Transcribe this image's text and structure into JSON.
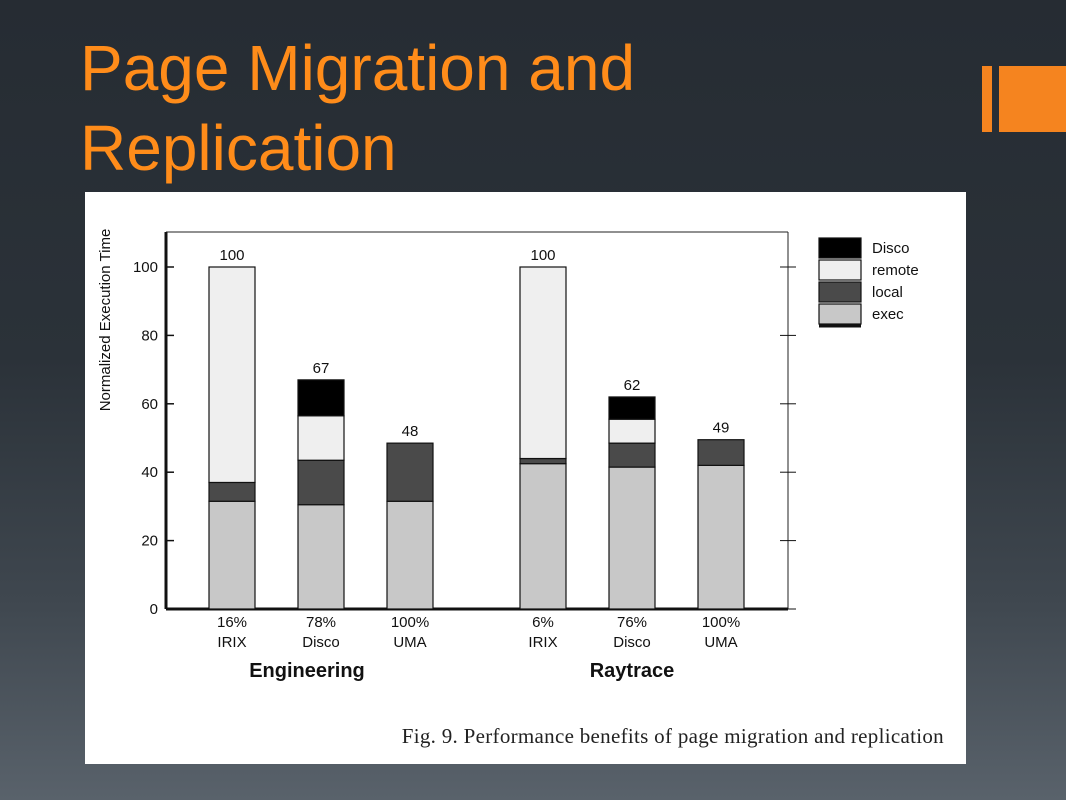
{
  "slide": {
    "title": "Page Migration and\nReplication"
  },
  "figure": {
    "caption": "Fig. 9.    Performance benefits of page migration and replication"
  },
  "colors": {
    "accent": "#ff8c1a",
    "disco": "#000000",
    "remote": "#efefef",
    "local": "#4a4a4a",
    "exec": "#c8c8c8"
  },
  "chart_data": {
    "type": "bar",
    "stacked": true,
    "ylabel": "Normalized Execution Time",
    "ylim": [
      0,
      110
    ],
    "yticks": [
      0,
      20,
      40,
      60,
      80,
      100
    ],
    "grid": false,
    "legend_position": "right",
    "legend": [
      "Disco",
      "remote",
      "local",
      "exec"
    ],
    "groups": [
      {
        "name": "Engineering",
        "bars": [
          {
            "percent": "16%",
            "label": "IRIX",
            "total": "100",
            "exec": 31.5,
            "local": 5.5,
            "remote": 63,
            "disco": 0
          },
          {
            "percent": "78%",
            "label": "Disco",
            "total": "67",
            "exec": 30.5,
            "local": 13,
            "remote": 13,
            "disco": 10.5
          },
          {
            "percent": "100%",
            "label": "UMA",
            "total": "48",
            "exec": 31.5,
            "local": 17,
            "remote": 0,
            "disco": 0
          }
        ]
      },
      {
        "name": "Raytrace",
        "bars": [
          {
            "percent": "6%",
            "label": "IRIX",
            "total": "100",
            "exec": 42.5,
            "local": 1.5,
            "remote": 56,
            "disco": 0
          },
          {
            "percent": "76%",
            "label": "Disco",
            "total": "62",
            "exec": 41.5,
            "local": 7,
            "remote": 7,
            "disco": 6.5
          },
          {
            "percent": "100%",
            "label": "UMA",
            "total": "49",
            "exec": 42,
            "local": 7.5,
            "remote": 0,
            "disco": 0
          }
        ]
      }
    ]
  }
}
